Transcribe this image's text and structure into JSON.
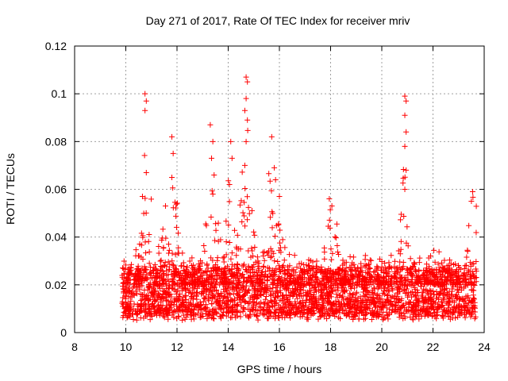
{
  "chart_data": {
    "type": "scatter",
    "title": "Day 271 of 2017, Rate Of TEC Index for receiver mriv",
    "xlabel": "GPS time / hours",
    "ylabel": "ROTI / TECUs",
    "xlim": [
      8,
      24
    ],
    "ylim": [
      0,
      0.12
    ],
    "xticks": [
      "8",
      "10",
      "12",
      "14",
      "16",
      "18",
      "20",
      "22",
      "24"
    ],
    "yticks": [
      "0",
      "0.02",
      "0.04",
      "0.06",
      "0.08",
      "0.1",
      "0.12"
    ],
    "grid": true,
    "marker": "+",
    "color": "#ff0000",
    "series": [
      {
        "name": "ROTI",
        "time_range_hours": [
          9.85,
          23.7
        ],
        "baseline_range": [
          0.005,
          0.025
        ],
        "peaks": [
          {
            "x": 10.75,
            "y": 0.1
          },
          {
            "x": 10.8,
            "y": 0.097
          },
          {
            "x": 10.75,
            "y": 0.093
          },
          {
            "x": 10.8,
            "y": 0.067
          },
          {
            "x": 10.65,
            "y": 0.057
          },
          {
            "x": 11.55,
            "y": 0.053
          },
          {
            "x": 11.8,
            "y": 0.082
          },
          {
            "x": 11.85,
            "y": 0.075
          },
          {
            "x": 11.8,
            "y": 0.065
          },
          {
            "x": 13.3,
            "y": 0.087
          },
          {
            "x": 13.4,
            "y": 0.08
          },
          {
            "x": 13.35,
            "y": 0.073
          },
          {
            "x": 13.45,
            "y": 0.066
          },
          {
            "x": 13.4,
            "y": 0.058
          },
          {
            "x": 14.1,
            "y": 0.08
          },
          {
            "x": 14.15,
            "y": 0.073
          },
          {
            "x": 14.05,
            "y": 0.062
          },
          {
            "x": 14.7,
            "y": 0.107
          },
          {
            "x": 14.75,
            "y": 0.105
          },
          {
            "x": 14.7,
            "y": 0.098
          },
          {
            "x": 14.65,
            "y": 0.093
          },
          {
            "x": 14.75,
            "y": 0.089
          },
          {
            "x": 14.7,
            "y": 0.08
          },
          {
            "x": 14.65,
            "y": 0.07
          },
          {
            "x": 15.7,
            "y": 0.082
          },
          {
            "x": 15.8,
            "y": 0.069
          },
          {
            "x": 15.85,
            "y": 0.064
          },
          {
            "x": 16.0,
            "y": 0.057
          },
          {
            "x": 17.95,
            "y": 0.056
          },
          {
            "x": 18.05,
            "y": 0.053
          },
          {
            "x": 20.9,
            "y": 0.099
          },
          {
            "x": 20.95,
            "y": 0.097
          },
          {
            "x": 20.9,
            "y": 0.091
          },
          {
            "x": 20.95,
            "y": 0.084
          },
          {
            "x": 20.9,
            "y": 0.078
          },
          {
            "x": 20.95,
            "y": 0.068
          },
          {
            "x": 20.9,
            "y": 0.06
          },
          {
            "x": 23.55,
            "y": 0.059
          },
          {
            "x": 23.5,
            "y": 0.055
          }
        ]
      }
    ]
  }
}
